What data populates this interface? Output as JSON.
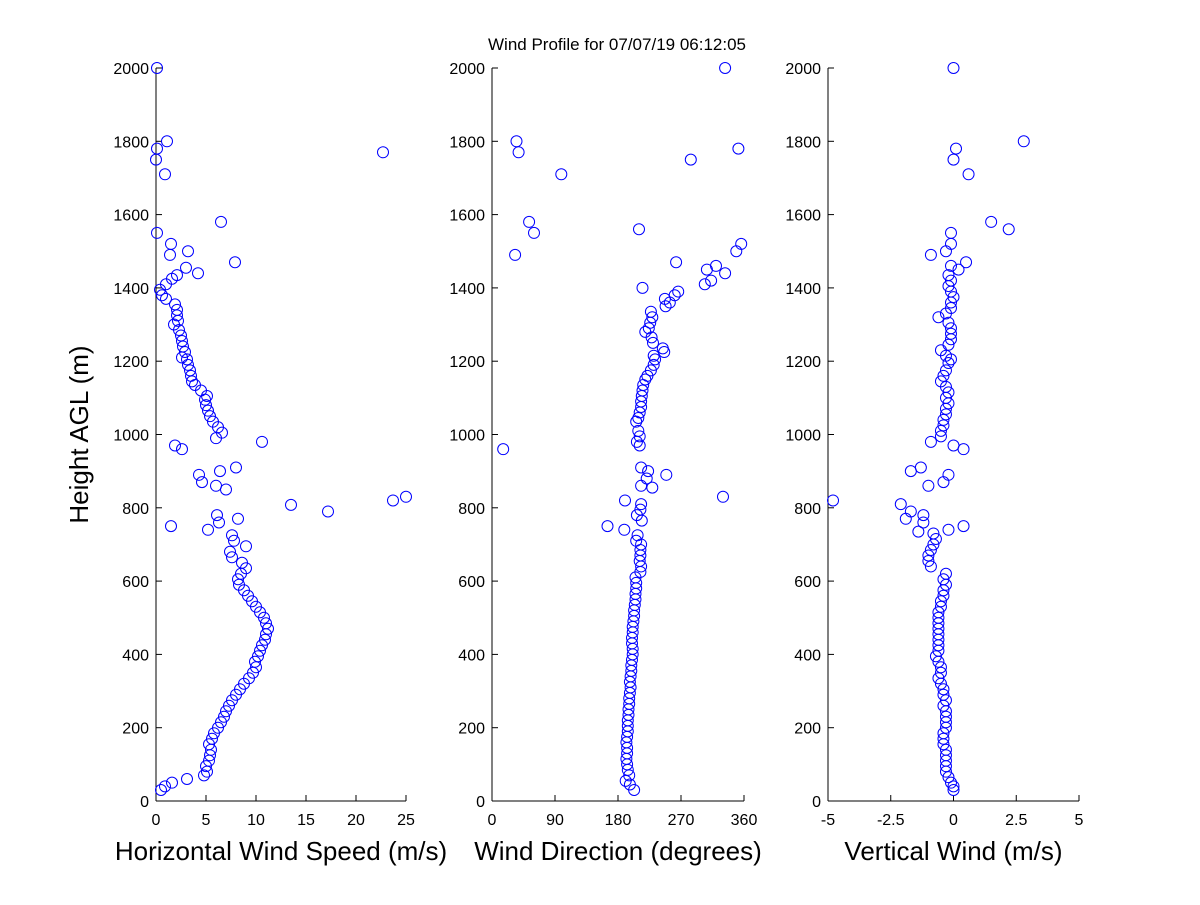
{
  "figure": {
    "title": "Wind Profile for  07/07/19 06:12:05",
    "marker_color": "#0000ff",
    "axis_color": "#000000",
    "background": "#ffffff"
  },
  "chart_data": [
    {
      "type": "scatter",
      "title": "",
      "xlabel": "Horizontal Wind Speed (m/s)",
      "ylabel": "Height AGL (m)",
      "xlim": [
        0,
        25
      ],
      "ylim": [
        0,
        2000
      ],
      "x_ticks": [
        0,
        5,
        10,
        15,
        20,
        25
      ],
      "x_tick_labels": [
        "0",
        "5",
        "10",
        "15",
        "20",
        "25"
      ],
      "y_ticks": [
        0,
        200,
        400,
        600,
        800,
        1000,
        1200,
        1400,
        1600,
        1800,
        2000
      ],
      "y_tick_labels": [
        "0",
        "200",
        "400",
        "600",
        "800",
        "1000",
        "1200",
        "1400",
        "1600",
        "1800",
        "2000"
      ],
      "grid": false,
      "marker": "open-circle",
      "points": [
        [
          0.5,
          30
        ],
        [
          0.9,
          40
        ],
        [
          1.6,
          50
        ],
        [
          3.1,
          60
        ],
        [
          4.8,
          70
        ],
        [
          5.1,
          80
        ],
        [
          5.0,
          95
        ],
        [
          5.3,
          110
        ],
        [
          5.4,
          125
        ],
        [
          5.5,
          140
        ],
        [
          5.3,
          155
        ],
        [
          5.6,
          170
        ],
        [
          5.8,
          185
        ],
        [
          6.2,
          200
        ],
        [
          6.5,
          215
        ],
        [
          6.8,
          230
        ],
        [
          7.0,
          245
        ],
        [
          7.3,
          260
        ],
        [
          7.6,
          275
        ],
        [
          8.0,
          290
        ],
        [
          8.4,
          305
        ],
        [
          8.8,
          320
        ],
        [
          9.3,
          335
        ],
        [
          9.7,
          350
        ],
        [
          10.0,
          365
        ],
        [
          9.9,
          380
        ],
        [
          10.2,
          395
        ],
        [
          10.4,
          410
        ],
        [
          10.6,
          425
        ],
        [
          10.9,
          440
        ],
        [
          11.0,
          455
        ],
        [
          11.2,
          470
        ],
        [
          11.0,
          485
        ],
        [
          10.8,
          500
        ],
        [
          10.4,
          515
        ],
        [
          10.0,
          530
        ],
        [
          9.6,
          545
        ],
        [
          9.2,
          560
        ],
        [
          8.8,
          575
        ],
        [
          8.3,
          590
        ],
        [
          8.2,
          605
        ],
        [
          8.5,
          620
        ],
        [
          9.0,
          635
        ],
        [
          8.6,
          650
        ],
        [
          7.6,
          665
        ],
        [
          7.4,
          680
        ],
        [
          9.0,
          695
        ],
        [
          7.8,
          710
        ],
        [
          7.6,
          725
        ],
        [
          5.2,
          740
        ],
        [
          1.5,
          750
        ],
        [
          6.3,
          760
        ],
        [
          8.2,
          770
        ],
        [
          6.1,
          780
        ],
        [
          17.2,
          790
        ],
        [
          13.5,
          808
        ],
        [
          23.7,
          820
        ],
        [
          25.0,
          830
        ],
        [
          7.0,
          850
        ],
        [
          6.0,
          860
        ],
        [
          4.6,
          870
        ],
        [
          4.3,
          890
        ],
        [
          6.4,
          900
        ],
        [
          8.0,
          910
        ],
        [
          2.6,
          960
        ],
        [
          1.9,
          970
        ],
        [
          10.6,
          980
        ],
        [
          6.0,
          990
        ],
        [
          6.6,
          1005
        ],
        [
          6.2,
          1020
        ],
        [
          5.7,
          1035
        ],
        [
          5.4,
          1050
        ],
        [
          5.2,
          1065
        ],
        [
          5.0,
          1080
        ],
        [
          4.9,
          1095
        ],
        [
          5.1,
          1105
        ],
        [
          4.5,
          1120
        ],
        [
          3.9,
          1135
        ],
        [
          3.6,
          1145
        ],
        [
          3.5,
          1160
        ],
        [
          3.4,
          1175
        ],
        [
          3.2,
          1190
        ],
        [
          3.1,
          1205
        ],
        [
          2.6,
          1210
        ],
        [
          2.9,
          1225
        ],
        [
          2.7,
          1240
        ],
        [
          2.6,
          1255
        ],
        [
          2.5,
          1270
        ],
        [
          2.3,
          1285
        ],
        [
          1.8,
          1300
        ],
        [
          2.2,
          1310
        ],
        [
          2.1,
          1325
        ],
        [
          2.1,
          1340
        ],
        [
          1.9,
          1355
        ],
        [
          1.0,
          1370
        ],
        [
          0.6,
          1380
        ],
        [
          0.4,
          1395
        ],
        [
          1.0,
          1410
        ],
        [
          1.6,
          1425
        ],
        [
          2.1,
          1435
        ],
        [
          4.2,
          1440
        ],
        [
          3.0,
          1455
        ],
        [
          7.9,
          1470
        ],
        [
          1.4,
          1490
        ],
        [
          3.2,
          1500
        ],
        [
          1.5,
          1520
        ],
        [
          0.1,
          1550
        ],
        [
          6.5,
          1580
        ],
        [
          0.9,
          1710
        ],
        [
          0.0,
          1750
        ],
        [
          22.7,
          1770
        ],
        [
          0.1,
          1780
        ],
        [
          1.1,
          1800
        ],
        [
          0.1,
          2000
        ]
      ]
    },
    {
      "type": "scatter",
      "title": "",
      "xlabel": "Wind Direction (degrees)",
      "ylabel": "",
      "xlim": [
        0,
        360
      ],
      "ylim": [
        0,
        2000
      ],
      "x_ticks": [
        0,
        90,
        180,
        270,
        360
      ],
      "x_tick_labels": [
        "0",
        "90",
        "180",
        "270",
        "360"
      ],
      "y_ticks": [
        0,
        200,
        400,
        600,
        800,
        1000,
        1200,
        1400,
        1600,
        1800,
        2000
      ],
      "y_tick_labels": [
        "0",
        "200",
        "400",
        "600",
        "800",
        "1000",
        "1200",
        "1400",
        "1600",
        "1800",
        "2000"
      ],
      "grid": false,
      "marker": "open-circle",
      "points": [
        [
          203,
          30
        ],
        [
          197,
          45
        ],
        [
          191,
          55
        ],
        [
          196,
          70
        ],
        [
          194,
          85
        ],
        [
          193,
          100
        ],
        [
          192,
          115
        ],
        [
          193,
          130
        ],
        [
          193,
          145
        ],
        [
          192,
          160
        ],
        [
          193,
          175
        ],
        [
          194,
          190
        ],
        [
          194,
          205
        ],
        [
          194,
          220
        ],
        [
          195,
          235
        ],
        [
          195,
          250
        ],
        [
          196,
          265
        ],
        [
          196,
          280
        ],
        [
          197,
          295
        ],
        [
          198,
          310
        ],
        [
          197,
          325
        ],
        [
          198,
          340
        ],
        [
          199,
          355
        ],
        [
          199,
          370
        ],
        [
          200,
          385
        ],
        [
          201,
          400
        ],
        [
          201,
          415
        ],
        [
          200,
          430
        ],
        [
          200,
          445
        ],
        [
          201,
          460
        ],
        [
          201,
          475
        ],
        [
          202,
          490
        ],
        [
          203,
          505
        ],
        [
          203,
          520
        ],
        [
          204,
          535
        ],
        [
          205,
          550
        ],
        [
          205,
          565
        ],
        [
          206,
          580
        ],
        [
          206,
          595
        ],
        [
          205,
          610
        ],
        [
          212,
          625
        ],
        [
          213,
          640
        ],
        [
          211,
          655
        ],
        [
          212,
          670
        ],
        [
          212,
          685
        ],
        [
          213,
          700
        ],
        [
          206,
          710
        ],
        [
          208,
          725
        ],
        [
          189,
          740
        ],
        [
          165,
          750
        ],
        [
          214,
          765
        ],
        [
          207,
          780
        ],
        [
          212,
          795
        ],
        [
          213,
          810
        ],
        [
          190,
          820
        ],
        [
          330,
          830
        ],
        [
          229,
          855
        ],
        [
          213,
          860
        ],
        [
          221,
          880
        ],
        [
          249,
          890
        ],
        [
          223,
          900
        ],
        [
          213,
          910
        ],
        [
          16,
          960
        ],
        [
          211,
          970
        ],
        [
          207,
          980
        ],
        [
          211,
          995
        ],
        [
          209,
          1010
        ],
        [
          206,
          1035
        ],
        [
          209,
          1045
        ],
        [
          211,
          1060
        ],
        [
          213,
          1075
        ],
        [
          213,
          1090
        ],
        [
          214,
          1105
        ],
        [
          215,
          1120
        ],
        [
          216,
          1135
        ],
        [
          219,
          1150
        ],
        [
          222,
          1160
        ],
        [
          227,
          1175
        ],
        [
          231,
          1190
        ],
        [
          233,
          1205
        ],
        [
          231,
          1215
        ],
        [
          246,
          1225
        ],
        [
          244,
          1235
        ],
        [
          230,
          1250
        ],
        [
          228,
          1265
        ],
        [
          219,
          1280
        ],
        [
          224,
          1290
        ],
        [
          226,
          1305
        ],
        [
          229,
          1320
        ],
        [
          227,
          1335
        ],
        [
          248,
          1350
        ],
        [
          254,
          1360
        ],
        [
          247,
          1370
        ],
        [
          261,
          1380
        ],
        [
          266,
          1390
        ],
        [
          215,
          1400
        ],
        [
          304,
          1410
        ],
        [
          313,
          1420
        ],
        [
          333,
          1440
        ],
        [
          307,
          1450
        ],
        [
          320,
          1460
        ],
        [
          263,
          1470
        ],
        [
          33,
          1490
        ],
        [
          349,
          1500
        ],
        [
          356,
          1520
        ],
        [
          60,
          1550
        ],
        [
          210,
          1560
        ],
        [
          53,
          1580
        ],
        [
          99,
          1710
        ],
        [
          284,
          1750
        ],
        [
          38,
          1770
        ],
        [
          352,
          1780
        ],
        [
          35,
          1800
        ],
        [
          333,
          2000
        ]
      ]
    },
    {
      "type": "scatter",
      "title": "",
      "xlabel": "Vertical Wind (m/s)",
      "ylabel": "",
      "xlim": [
        -5,
        5
      ],
      "ylim": [
        0,
        2000
      ],
      "x_ticks": [
        -5,
        -2.5,
        0,
        2.5,
        5
      ],
      "x_tick_labels": [
        "-5",
        "-2.5",
        "0",
        "2.5",
        "5"
      ],
      "y_ticks": [
        0,
        200,
        400,
        600,
        800,
        1000,
        1200,
        1400,
        1600,
        1800,
        2000
      ],
      "y_tick_labels": [
        "0",
        "200",
        "400",
        "600",
        "800",
        "1000",
        "1200",
        "1400",
        "1600",
        "1800",
        "2000"
      ],
      "grid": false,
      "marker": "open-circle",
      "points": [
        [
          0.0,
          30
        ],
        [
          0.0,
          40
        ],
        [
          -0.1,
          50
        ],
        [
          -0.2,
          65
        ],
        [
          -0.3,
          80
        ],
        [
          -0.3,
          95
        ],
        [
          -0.3,
          110
        ],
        [
          -0.3,
          125
        ],
        [
          -0.3,
          140
        ],
        [
          -0.4,
          155
        ],
        [
          -0.4,
          170
        ],
        [
          -0.4,
          185
        ],
        [
          -0.3,
          200
        ],
        [
          -0.3,
          215
        ],
        [
          -0.3,
          230
        ],
        [
          -0.3,
          245
        ],
        [
          -0.4,
          260
        ],
        [
          -0.3,
          275
        ],
        [
          -0.4,
          290
        ],
        [
          -0.4,
          305
        ],
        [
          -0.5,
          320
        ],
        [
          -0.6,
          335
        ],
        [
          -0.5,
          350
        ],
        [
          -0.5,
          365
        ],
        [
          -0.6,
          380
        ],
        [
          -0.7,
          395
        ],
        [
          -0.6,
          410
        ],
        [
          -0.6,
          425
        ],
        [
          -0.6,
          440
        ],
        [
          -0.6,
          455
        ],
        [
          -0.6,
          470
        ],
        [
          -0.6,
          485
        ],
        [
          -0.6,
          500
        ],
        [
          -0.6,
          515
        ],
        [
          -0.5,
          530
        ],
        [
          -0.5,
          545
        ],
        [
          -0.4,
          560
        ],
        [
          -0.4,
          575
        ],
        [
          -0.3,
          590
        ],
        [
          -0.4,
          605
        ],
        [
          -0.3,
          620
        ],
        [
          -0.9,
          640
        ],
        [
          -1.0,
          655
        ],
        [
          -1.0,
          670
        ],
        [
          -0.9,
          685
        ],
        [
          -0.8,
          700
        ],
        [
          -0.7,
          715
        ],
        [
          -0.8,
          730
        ],
        [
          -1.4,
          735
        ],
        [
          -0.2,
          740
        ],
        [
          0.4,
          750
        ],
        [
          -1.2,
          760
        ],
        [
          -1.9,
          770
        ],
        [
          -1.2,
          780
        ],
        [
          -1.7,
          790
        ],
        [
          -2.1,
          810
        ],
        [
          -4.8,
          820
        ],
        [
          -1.0,
          860
        ],
        [
          -0.4,
          870
        ],
        [
          -0.2,
          890
        ],
        [
          -1.7,
          900
        ],
        [
          -1.3,
          910
        ],
        [
          0.4,
          960
        ],
        [
          0.0,
          970
        ],
        [
          -0.9,
          980
        ],
        [
          -0.5,
          995
        ],
        [
          -0.5,
          1010
        ],
        [
          -0.4,
          1025
        ],
        [
          -0.4,
          1040
        ],
        [
          -0.3,
          1055
        ],
        [
          -0.3,
          1070
        ],
        [
          -0.2,
          1085
        ],
        [
          -0.3,
          1100
        ],
        [
          -0.2,
          1115
        ],
        [
          -0.3,
          1130
        ],
        [
          -0.5,
          1145
        ],
        [
          -0.4,
          1160
        ],
        [
          -0.3,
          1175
        ],
        [
          -0.2,
          1195
        ],
        [
          -0.1,
          1205
        ],
        [
          -0.3,
          1215
        ],
        [
          -0.5,
          1230
        ],
        [
          -0.2,
          1245
        ],
        [
          -0.1,
          1260
        ],
        [
          -0.1,
          1275
        ],
        [
          -0.1,
          1290
        ],
        [
          -0.2,
          1305
        ],
        [
          -0.6,
          1320
        ],
        [
          -0.3,
          1330
        ],
        [
          -0.1,
          1345
        ],
        [
          -0.1,
          1360
        ],
        [
          0.0,
          1375
        ],
        [
          -0.1,
          1390
        ],
        [
          -0.2,
          1405
        ],
        [
          -0.1,
          1420
        ],
        [
          -0.2,
          1435
        ],
        [
          0.2,
          1450
        ],
        [
          -0.1,
          1460
        ],
        [
          0.5,
          1470
        ],
        [
          -0.9,
          1490
        ],
        [
          -0.3,
          1500
        ],
        [
          -0.1,
          1520
        ],
        [
          -0.1,
          1550
        ],
        [
          2.2,
          1560
        ],
        [
          1.5,
          1580
        ],
        [
          0.6,
          1710
        ],
        [
          0.0,
          1750
        ],
        [
          0.1,
          1780
        ],
        [
          2.8,
          1800
        ],
        [
          0.0,
          2000
        ]
      ]
    }
  ]
}
